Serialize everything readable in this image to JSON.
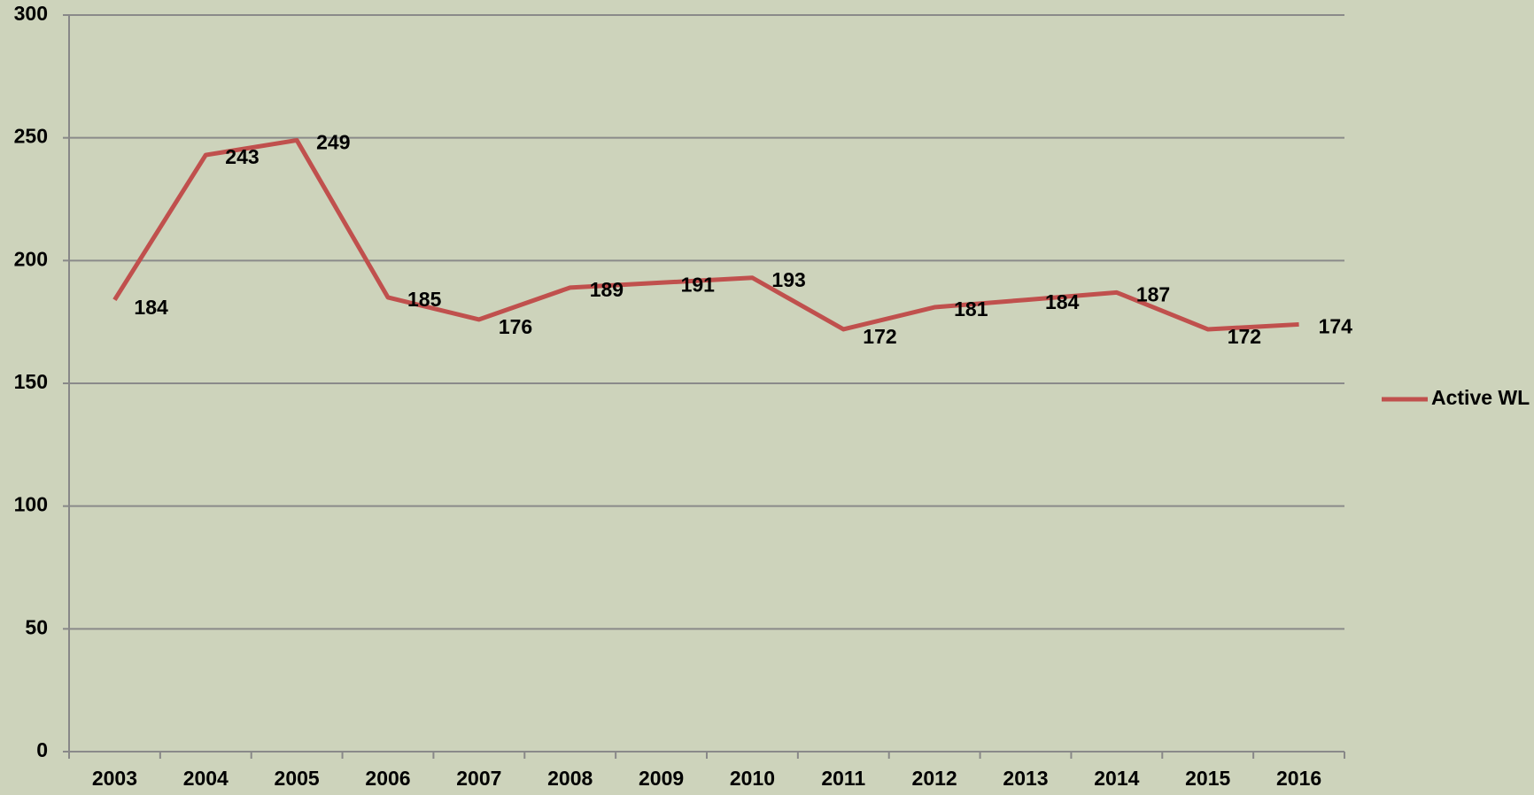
{
  "chart_data": {
    "type": "line",
    "categories": [
      "2003",
      "2004",
      "2005",
      "2006",
      "2007",
      "2008",
      "2009",
      "2010",
      "2011",
      "2012",
      "2013",
      "2014",
      "2015",
      "2016"
    ],
    "series": [
      {
        "name": "Active WL",
        "color": "#c0504d",
        "values": [
          184,
          243,
          249,
          185,
          176,
          189,
          191,
          193,
          172,
          181,
          184,
          187,
          172,
          174
        ]
      }
    ],
    "ylim": [
      0,
      300
    ],
    "yticks": [
      0,
      50,
      100,
      150,
      200,
      250,
      300
    ],
    "grid": true,
    "legend": "right"
  }
}
